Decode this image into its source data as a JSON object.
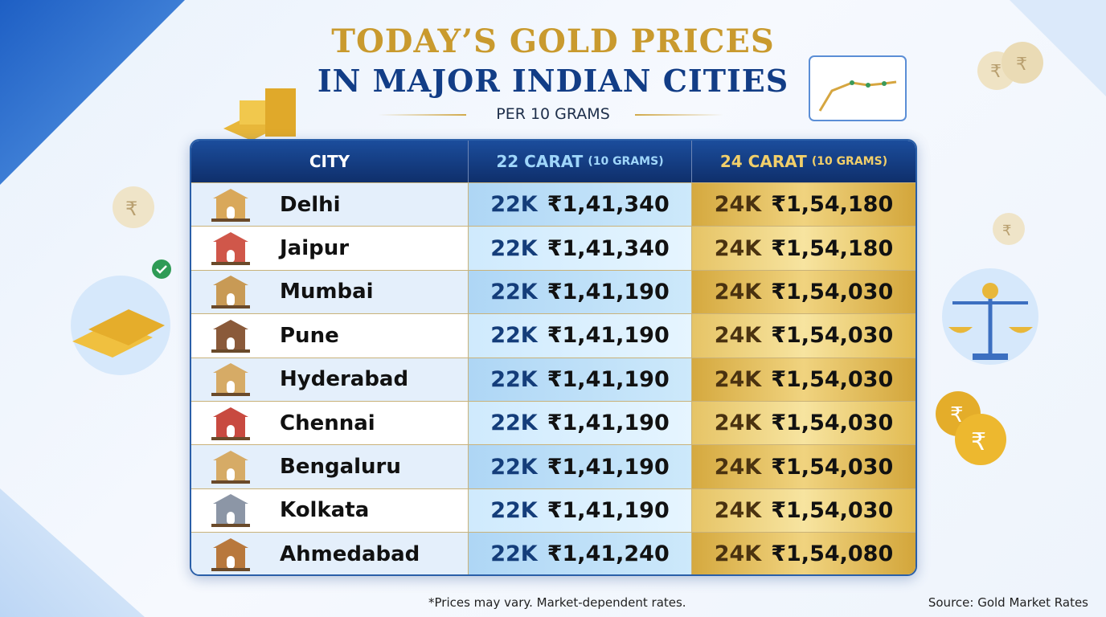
{
  "header": {
    "title_line1": "TODAY’S GOLD PRICES",
    "title_line2": "IN MAJOR INDIAN CITIES",
    "subtitle": "PER 10 GRAMS"
  },
  "table": {
    "columns": [
      {
        "label": "CITY"
      },
      {
        "label": "22 CARAT",
        "unit": "(10 GRAMS)"
      },
      {
        "label": "24 CARAT",
        "unit": "(10 GRAMS)"
      }
    ],
    "rows": [
      {
        "city": "Delhi",
        "icon": "india-gate-icon",
        "k22": "22K",
        "p22": "₹1,41,340",
        "k24": "24K",
        "p24": "₹1,54,180"
      },
      {
        "city": "Jaipur",
        "icon": "hawa-mahal-icon",
        "k22": "22K",
        "p22": "₹1,41,340",
        "k24": "24K",
        "p24": "₹1,54,180"
      },
      {
        "city": "Mumbai",
        "icon": "gateway-of-india-icon",
        "k22": "22K",
        "p22": "₹1,41,190",
        "k24": "24K",
        "p24": "₹1,54,030"
      },
      {
        "city": "Pune",
        "icon": "shaniwar-wada-icon",
        "k22": "22K",
        "p22": "₹1,41,190",
        "k24": "24K",
        "p24": "₹1,54,030"
      },
      {
        "city": "Hyderabad",
        "icon": "charminar-icon",
        "k22": "22K",
        "p22": "₹1,41,190",
        "k24": "24K",
        "p24": "₹1,54,030"
      },
      {
        "city": "Chennai",
        "icon": "chennai-central-icon",
        "k22": "22K",
        "p22": "₹1,41,190",
        "k24": "24K",
        "p24": "₹1,54,030"
      },
      {
        "city": "Bengaluru",
        "icon": "vidhana-soudha-icon",
        "k22": "22K",
        "p22": "₹1,41,190",
        "k24": "24K",
        "p24": "₹1,54,030"
      },
      {
        "city": "Kolkata",
        "icon": "howrah-bridge-icon",
        "k22": "22K",
        "p22": "₹1,41,190",
        "k24": "24K",
        "p24": "₹1,54,030"
      },
      {
        "city": "Ahmedabad",
        "icon": "stepwell-icon",
        "k22": "22K",
        "p22": "₹1,41,240",
        "k24": "24K",
        "p24": "₹1,54,080"
      }
    ]
  },
  "footer": {
    "note": "*Prices may vary. Market-dependent rates.",
    "source": "Source: Gold Market Rates"
  },
  "colors": {
    "gold": "#c99a2e",
    "navy": "#123d86",
    "header_bg": "#143f84",
    "col22_text": "#143d7a",
    "col24_text": "#4a3210"
  }
}
